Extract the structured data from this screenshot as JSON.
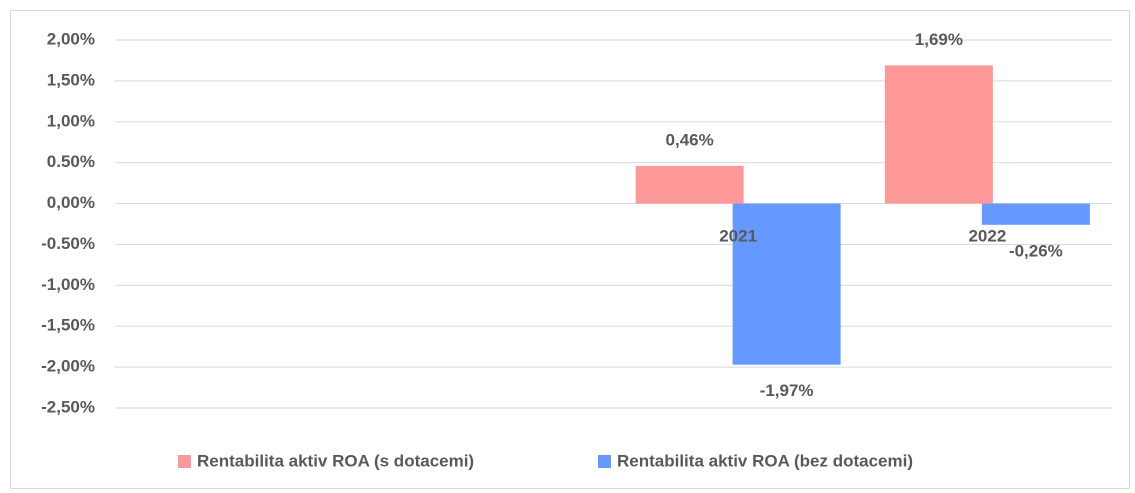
{
  "chart_data": {
    "type": "bar",
    "categories": [
      null,
      null,
      "2021",
      "2022"
    ],
    "series": [
      {
        "name": "Rentabilita aktiv ROA (s dotacemi)",
        "color": "#ff9999",
        "values": [
          null,
          null,
          0.46,
          1.69
        ],
        "value_labels": [
          null,
          null,
          "0,46%",
          "1,69%"
        ]
      },
      {
        "name": "Rentabilita aktiv ROA (bez dotacemi)",
        "color": "#6699ff",
        "values": [
          null,
          null,
          -1.97,
          -0.26
        ],
        "value_labels": [
          null,
          null,
          "-1,97%",
          "-0,26%"
        ]
      }
    ],
    "ylim": [
      -2.5,
      2
    ],
    "yticks": [
      {
        "value": 2,
        "label": "2,00%"
      },
      {
        "value": 1.5,
        "label": "1,50%"
      },
      {
        "value": 1,
        "label": "1,00%"
      },
      {
        "value": 0.5,
        "label": "0.50%"
      },
      {
        "value": 0,
        "label": "0,00%"
      },
      {
        "value": -0.5,
        "label": "-0.50%"
      },
      {
        "value": -1,
        "label": "-1,00%"
      },
      {
        "value": -1.5,
        "label": "-1,50%"
      },
      {
        "value": -2,
        "label": "-2,00%"
      },
      {
        "value": -2.5,
        "label": "-2,50%"
      }
    ],
    "grid": true,
    "legend": "bottom"
  }
}
